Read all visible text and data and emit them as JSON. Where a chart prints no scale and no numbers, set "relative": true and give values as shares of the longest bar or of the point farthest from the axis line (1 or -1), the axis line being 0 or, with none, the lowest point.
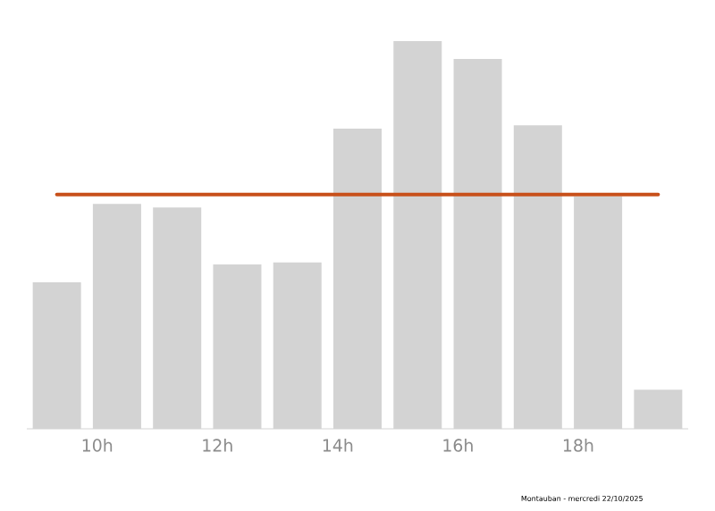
{
  "chart_data": {
    "type": "bar",
    "relative": true,
    "x": [
      9.33,
      10.33,
      11.33,
      12.33,
      13.33,
      14.33,
      15.33,
      16.33,
      17.33,
      18.33,
      19.33
    ],
    "values": [
      0.378,
      0.58,
      0.571,
      0.424,
      0.429,
      0.774,
      1,
      0.954,
      0.783,
      0.599,
      0.101
    ],
    "color": "#d3d3d3",
    "xlim": [
      8.83,
      19.83
    ],
    "xticks": [
      {
        "value": 10,
        "label": "10h"
      },
      {
        "value": 12,
        "label": "12h"
      },
      {
        "value": 14,
        "label": "14h"
      },
      {
        "value": 16,
        "label": "16h"
      },
      {
        "value": 18,
        "label": "18h"
      }
    ],
    "ref_lines": [
      {
        "axis": "y",
        "value": 0.604,
        "color": "#c8501a"
      }
    ],
    "annotations": [
      "Montauban - mercredi 22/10/2025"
    ]
  }
}
